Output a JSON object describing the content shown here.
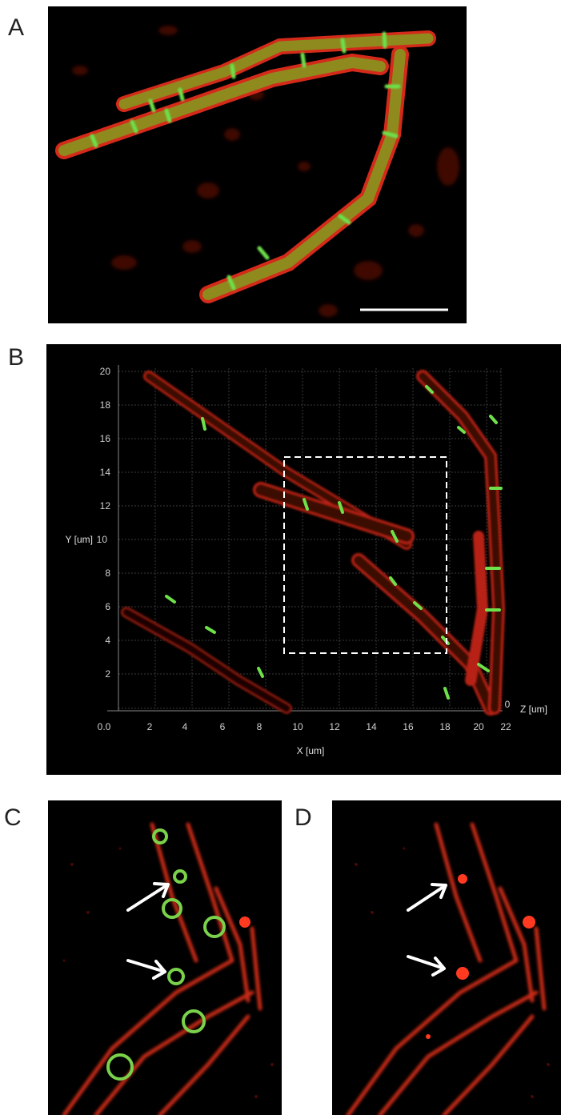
{
  "panels": {
    "a": {
      "letter": "A"
    },
    "b": {
      "letter": "B",
      "x_ticks": [
        "0.0",
        "2",
        "4",
        "6",
        "8",
        "10",
        "12",
        "14",
        "16",
        "18",
        "20",
        "22"
      ],
      "y_ticks": [
        "2",
        "4",
        "6",
        "8",
        "10",
        "12",
        "14",
        "16",
        "18",
        "20"
      ],
      "x_label": "X [um]",
      "y_label": "Y [um]",
      "z_tick": "0",
      "z_label": "Z [um]"
    },
    "c": {
      "letter": "C"
    },
    "d": {
      "letter": "D"
    }
  },
  "colors": {
    "membrane": "#d42a1a",
    "septum": "#6de04a",
    "overlap": "#9a8a20",
    "background": "#000000",
    "annotation": "#ffffff"
  }
}
